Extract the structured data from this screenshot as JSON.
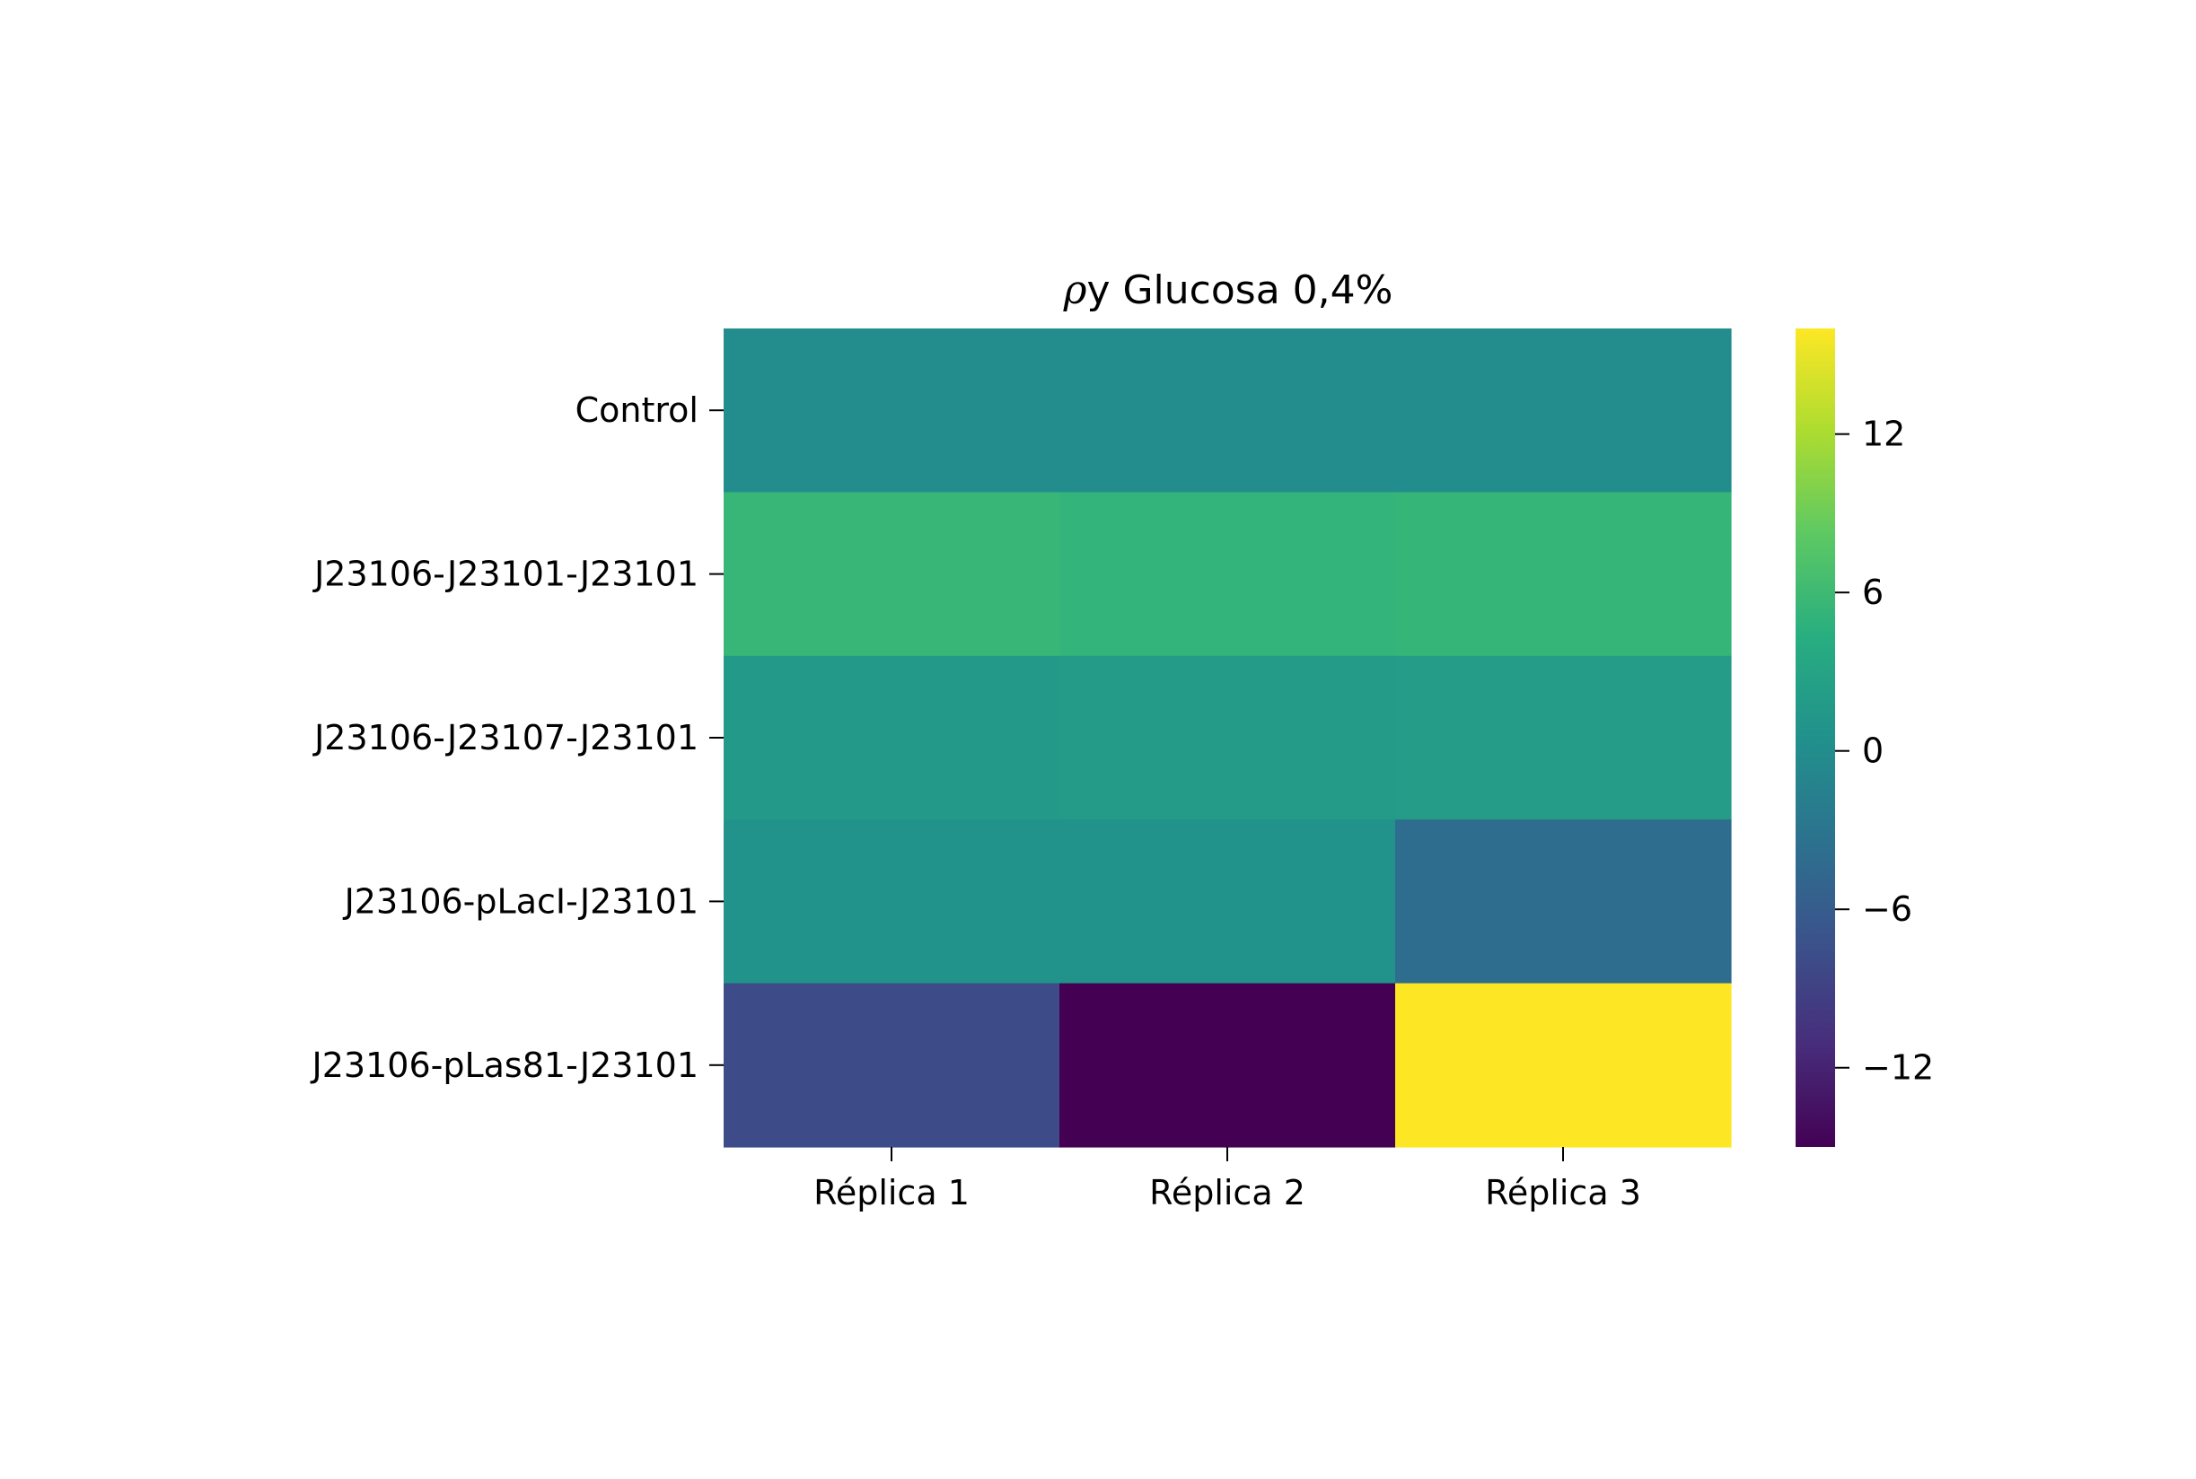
{
  "chart_data": {
    "type": "heatmap",
    "title": "ρy Glucosa 0,4%",
    "title_parts": {
      "symbol": "ρ",
      "rest": "y Glucosa 0,4%"
    },
    "columns": [
      "Réplica 1",
      "Réplica 2",
      "Réplica 3"
    ],
    "rows": [
      "Control",
      "J23106-J23101-J23101",
      "J23106-J23107-J23101",
      "J23106-pLacI-J23101",
      "J23106-pLas81-J23101"
    ],
    "values": [
      [
        0.0,
        0.0,
        0.0
      ],
      [
        5.5,
        5.2,
        5.4
      ],
      [
        1.6,
        1.8,
        2.0
      ],
      [
        0.8,
        0.8,
        -4.0
      ],
      [
        -8.0,
        -15.0,
        16.0
      ]
    ],
    "colormap": "viridis",
    "colorbar": {
      "vmin": -15,
      "vmax": 16,
      "ticks": [
        12,
        6,
        0,
        -6,
        -12
      ],
      "tick_labels": [
        "12",
        "6",
        "0",
        "−6",
        "−12"
      ]
    },
    "grid": false,
    "legend": "colorbar-right"
  }
}
